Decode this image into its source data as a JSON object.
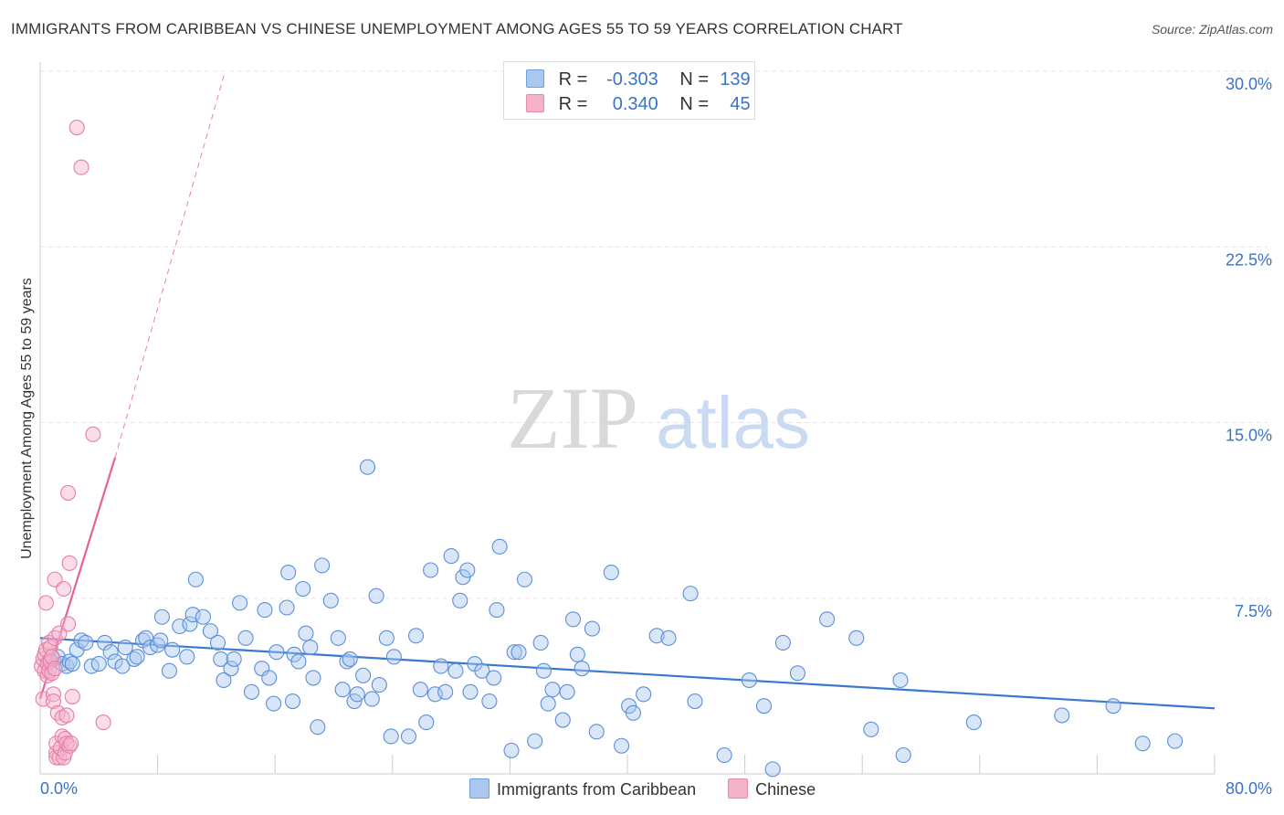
{
  "title": "IMMIGRANTS FROM CARIBBEAN VS CHINESE UNEMPLOYMENT AMONG AGES 55 TO 59 YEARS CORRELATION CHART",
  "source": "Source: ZipAtlas.com",
  "watermark": {
    "zip": "ZIP",
    "atlas": "atlas"
  },
  "colors": {
    "blue": "#3a78d0",
    "blue_fill": "#a9c7ef",
    "blue_text": "#3a73c8",
    "pink": "#e8609a",
    "pink_fill": "#f5b3cb",
    "grid": "#e6e6e6"
  },
  "legend": {
    "rows": [
      {
        "series": "Immigrants from Caribbean",
        "r_label": "R =",
        "r_value": "-0.303",
        "n_label": "N =",
        "n_value": "139"
      },
      {
        "series": "Chinese",
        "r_label": "R =",
        "r_value": "0.340",
        "n_label": "N =",
        "n_value": "45"
      }
    ]
  },
  "chart_data": {
    "type": "scatter",
    "title": "IMMIGRANTS FROM CARIBBEAN VS CHINESE UNEMPLOYMENT AMONG AGES 55 TO 59 YEARS CORRELATION CHART",
    "xlabel": "",
    "ylabel": "Unemployment Among Ages 55 to 59 years",
    "xlim": [
      0,
      80
    ],
    "ylim": [
      0,
      30
    ],
    "x_tick_labels": [
      "0.0%",
      "80.0%"
    ],
    "y_ticks": [
      7.5,
      15.0,
      22.5,
      30.0
    ],
    "y_tick_labels": [
      "7.5%",
      "15.0%",
      "22.5%",
      "30.0%"
    ],
    "series": [
      {
        "name": "Immigrants from Caribbean",
        "trend": {
          "x0": 0,
          "y0": 5.8,
          "x1": 80,
          "y1": 2.8,
          "style": "solid"
        },
        "points": [
          [
            0.6,
            4.8
          ],
          [
            0.9,
            4.9
          ],
          [
            1.2,
            5.0
          ],
          [
            1.5,
            4.7
          ],
          [
            1.8,
            4.6
          ],
          [
            2.0,
            4.8
          ],
          [
            2.2,
            4.7
          ],
          [
            2.5,
            5.3
          ],
          [
            2.8,
            5.7
          ],
          [
            3.1,
            5.6
          ],
          [
            3.5,
            4.6
          ],
          [
            4.0,
            4.7
          ],
          [
            4.4,
            5.6
          ],
          [
            4.8,
            5.2
          ],
          [
            5.1,
            4.8
          ],
          [
            5.6,
            4.6
          ],
          [
            5.8,
            5.4
          ],
          [
            6.4,
            4.9
          ],
          [
            6.6,
            5.0
          ],
          [
            7.0,
            5.7
          ],
          [
            7.2,
            5.8
          ],
          [
            7.5,
            5.4
          ],
          [
            8.0,
            5.5
          ],
          [
            8.2,
            5.7
          ],
          [
            8.3,
            6.7
          ],
          [
            8.8,
            4.4
          ],
          [
            9.0,
            5.3
          ],
          [
            9.5,
            6.3
          ],
          [
            10.0,
            5.0
          ],
          [
            10.2,
            6.4
          ],
          [
            10.4,
            6.8
          ],
          [
            10.6,
            8.3
          ],
          [
            11.1,
            6.7
          ],
          [
            11.6,
            6.1
          ],
          [
            12.1,
            5.6
          ],
          [
            12.3,
            4.9
          ],
          [
            12.5,
            4.0
          ],
          [
            13.0,
            4.5
          ],
          [
            13.2,
            4.9
          ],
          [
            13.6,
            7.3
          ],
          [
            14.0,
            5.8
          ],
          [
            14.4,
            3.5
          ],
          [
            15.1,
            4.5
          ],
          [
            15.3,
            7.0
          ],
          [
            15.6,
            4.1
          ],
          [
            15.9,
            3.0
          ],
          [
            16.1,
            5.2
          ],
          [
            16.8,
            7.1
          ],
          [
            16.9,
            8.6
          ],
          [
            17.2,
            3.1
          ],
          [
            17.3,
            5.1
          ],
          [
            17.6,
            4.8
          ],
          [
            17.9,
            7.9
          ],
          [
            18.1,
            6.0
          ],
          [
            18.4,
            5.4
          ],
          [
            18.6,
            4.1
          ],
          [
            18.9,
            2.0
          ],
          [
            19.2,
            8.9
          ],
          [
            19.8,
            7.4
          ],
          [
            20.3,
            5.8
          ],
          [
            20.6,
            3.6
          ],
          [
            20.9,
            4.8
          ],
          [
            21.1,
            4.9
          ],
          [
            21.4,
            3.1
          ],
          [
            21.6,
            3.4
          ],
          [
            22.0,
            4.2
          ],
          [
            22.3,
            13.1
          ],
          [
            22.6,
            3.2
          ],
          [
            22.9,
            7.6
          ],
          [
            23.1,
            3.8
          ],
          [
            23.6,
            5.8
          ],
          [
            23.9,
            1.6
          ],
          [
            24.1,
            5.0
          ],
          [
            25.1,
            1.6
          ],
          [
            25.6,
            5.9
          ],
          [
            25.9,
            3.6
          ],
          [
            26.3,
            2.2
          ],
          [
            26.6,
            8.7
          ],
          [
            26.9,
            3.4
          ],
          [
            27.3,
            4.6
          ],
          [
            27.6,
            3.5
          ],
          [
            28.0,
            9.3
          ],
          [
            28.3,
            4.4
          ],
          [
            28.6,
            7.4
          ],
          [
            28.8,
            8.4
          ],
          [
            29.1,
            8.7
          ],
          [
            29.3,
            3.5
          ],
          [
            29.6,
            4.7
          ],
          [
            30.1,
            4.4
          ],
          [
            30.6,
            3.1
          ],
          [
            30.9,
            4.1
          ],
          [
            31.1,
            7.0
          ],
          [
            31.3,
            9.7
          ],
          [
            32.1,
            1.0
          ],
          [
            32.3,
            5.2
          ],
          [
            32.6,
            5.2
          ],
          [
            33.0,
            8.3
          ],
          [
            33.7,
            1.4
          ],
          [
            34.1,
            5.6
          ],
          [
            34.3,
            4.4
          ],
          [
            34.6,
            3.0
          ],
          [
            34.9,
            3.6
          ],
          [
            35.6,
            2.3
          ],
          [
            35.9,
            3.5
          ],
          [
            36.3,
            6.6
          ],
          [
            36.6,
            5.1
          ],
          [
            36.9,
            4.5
          ],
          [
            37.6,
            6.2
          ],
          [
            37.9,
            1.8
          ],
          [
            38.9,
            8.6
          ],
          [
            39.6,
            1.2
          ],
          [
            40.1,
            2.9
          ],
          [
            40.4,
            2.6
          ],
          [
            41.1,
            3.4
          ],
          [
            42.0,
            5.9
          ],
          [
            42.8,
            5.8
          ],
          [
            44.3,
            7.7
          ],
          [
            44.6,
            3.1
          ],
          [
            46.6,
            0.8
          ],
          [
            48.3,
            4.0
          ],
          [
            49.3,
            2.9
          ],
          [
            49.9,
            0.2
          ],
          [
            50.6,
            5.6
          ],
          [
            51.6,
            4.3
          ],
          [
            53.6,
            6.6
          ],
          [
            55.6,
            5.8
          ],
          [
            56.6,
            1.9
          ],
          [
            58.6,
            4.0
          ],
          [
            58.8,
            0.8
          ],
          [
            63.6,
            2.2
          ],
          [
            69.6,
            2.5
          ],
          [
            73.1,
            2.9
          ],
          [
            75.1,
            1.3
          ],
          [
            77.3,
            1.4
          ]
        ]
      },
      {
        "name": "Chinese",
        "trend": {
          "x0": 0,
          "y0": 3.2,
          "x1": 5.1,
          "y1": 13.5,
          "style": "solid",
          "extended_to": [
            12.6,
            30.0
          ],
          "extended_style": "dashed"
        },
        "points": [
          [
            0.1,
            4.6
          ],
          [
            0.2,
            4.9
          ],
          [
            0.2,
            3.2
          ],
          [
            0.3,
            5.1
          ],
          [
            0.3,
            4.4
          ],
          [
            0.4,
            7.3
          ],
          [
            0.4,
            5.3
          ],
          [
            0.5,
            4.7
          ],
          [
            0.5,
            4.2
          ],
          [
            0.6,
            5.6
          ],
          [
            0.6,
            4.4
          ],
          [
            0.7,
            5.4
          ],
          [
            0.7,
            4.8
          ],
          [
            0.8,
            5.0
          ],
          [
            0.8,
            4.3
          ],
          [
            0.9,
            3.4
          ],
          [
            0.9,
            3.1
          ],
          [
            1.0,
            8.3
          ],
          [
            1.0,
            5.8
          ],
          [
            1.0,
            4.5
          ],
          [
            1.1,
            0.9
          ],
          [
            1.1,
            0.7
          ],
          [
            1.1,
            1.3
          ],
          [
            1.2,
            2.6
          ],
          [
            1.3,
            6.0
          ],
          [
            1.3,
            0.7
          ],
          [
            1.4,
            1.1
          ],
          [
            1.5,
            2.4
          ],
          [
            1.5,
            1.6
          ],
          [
            1.6,
            7.9
          ],
          [
            1.6,
            0.7
          ],
          [
            1.7,
            1.5
          ],
          [
            1.7,
            0.9
          ],
          [
            1.8,
            1.3
          ],
          [
            1.8,
            2.5
          ],
          [
            1.9,
            6.4
          ],
          [
            1.9,
            12.0
          ],
          [
            2.0,
            1.2
          ],
          [
            2.0,
            9.0
          ],
          [
            2.1,
            1.3
          ],
          [
            2.2,
            3.3
          ],
          [
            2.5,
            27.6
          ],
          [
            2.8,
            25.9
          ],
          [
            3.6,
            14.5
          ],
          [
            4.3,
            2.2
          ]
        ]
      }
    ]
  }
}
